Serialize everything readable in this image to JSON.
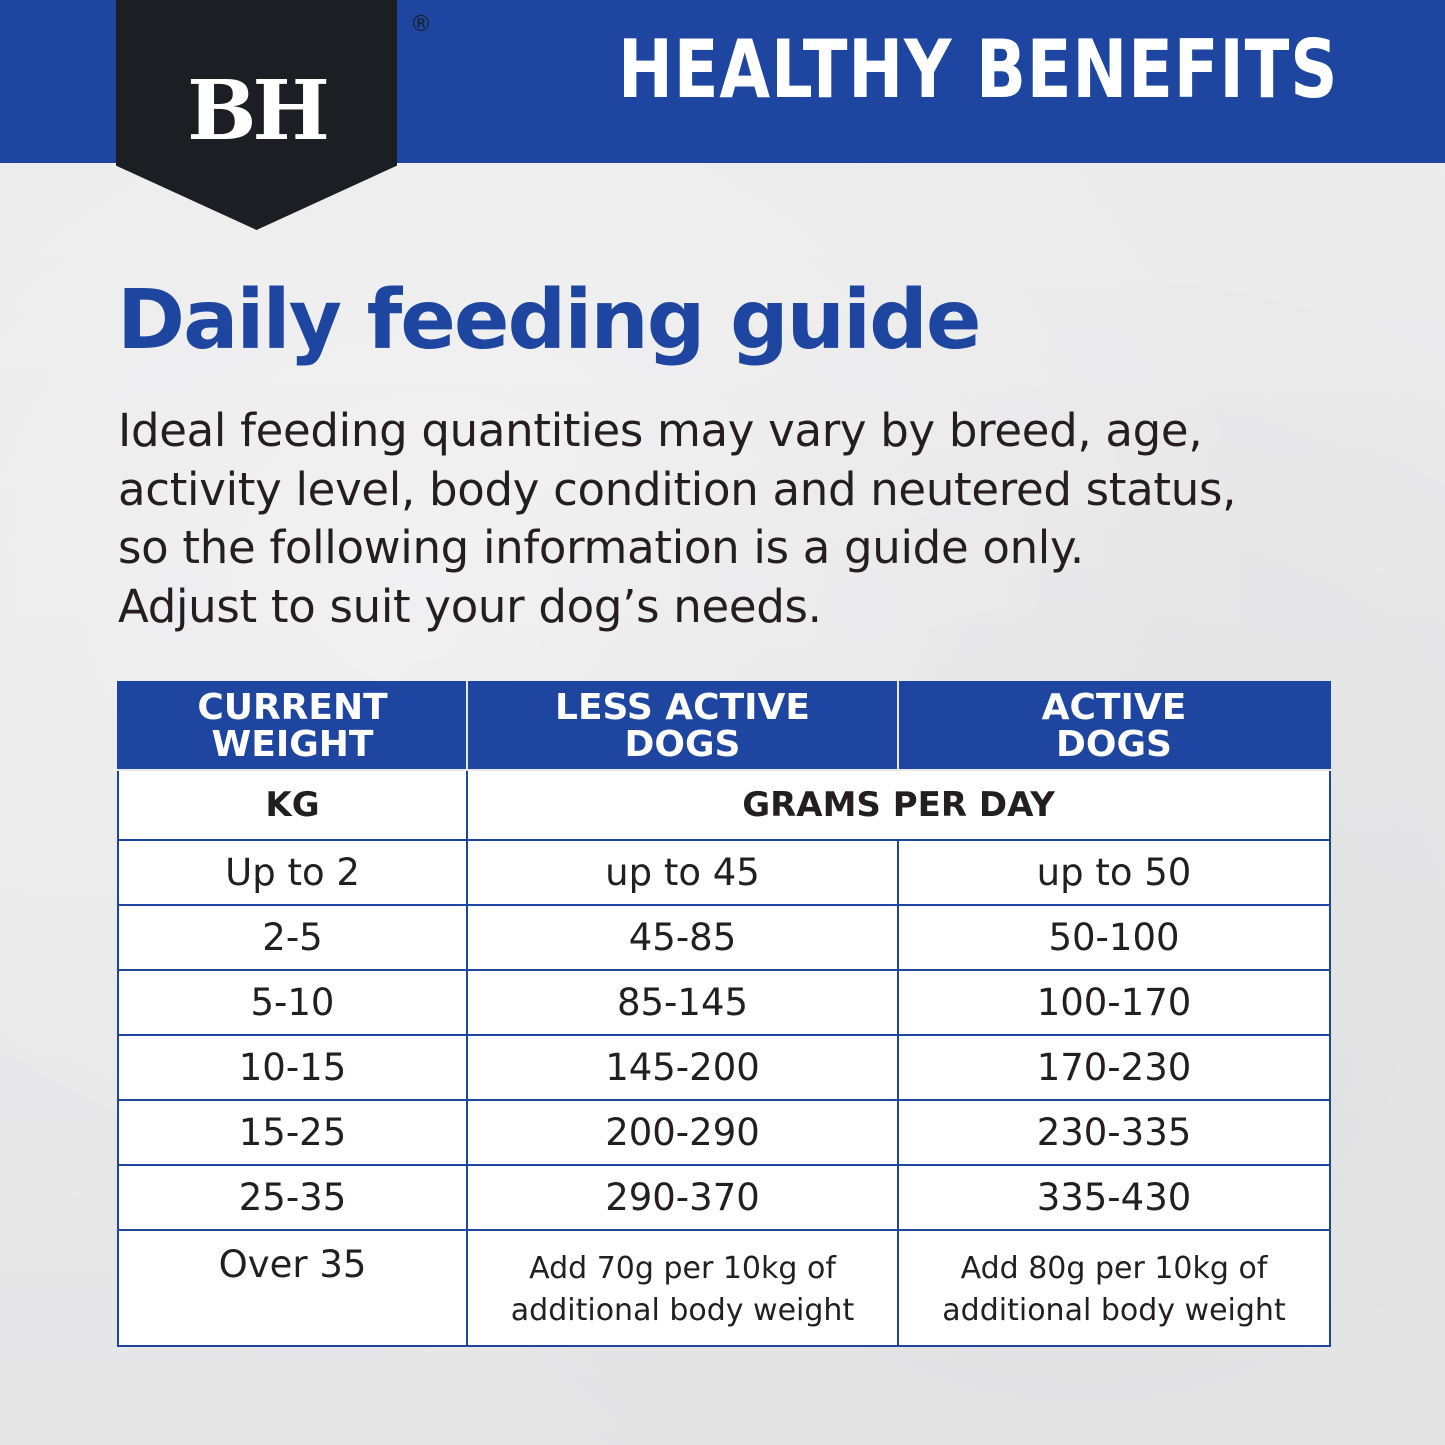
{
  "brand": {
    "logo_text": "BH",
    "registered_mark": "®",
    "name": "HEALTHY BENEFITS",
    "trademark": "™",
    "colors": {
      "primary_blue": "#1e46a0",
      "badge_black": "#1b1f24",
      "background": "#e9e9ea"
    }
  },
  "heading": "Daily feeding guide",
  "intro": "Ideal feeding quantities may vary by breed, age,\nactivity level, body condition and neutered status,\nso the following information is a guide only.\nAdjust to suit your dog’s needs.",
  "table": {
    "headers": [
      "CURRENT WEIGHT",
      "LESS ACTIVE DOGS",
      "ACTIVE DOGS"
    ],
    "units": {
      "weight": "KG",
      "amount": "GRAMS PER DAY"
    },
    "rows": [
      {
        "weight": "Up to 2",
        "less_active": "up to 45",
        "active": "up to 50"
      },
      {
        "weight": "2-5",
        "less_active": "45-85",
        "active": "50-100"
      },
      {
        "weight": "5-10",
        "less_active": "85-145",
        "active": "100-170"
      },
      {
        "weight": "10-15",
        "less_active": "145-200",
        "active": "170-230"
      },
      {
        "weight": "15-25",
        "less_active": "200-290",
        "active": "230-335"
      },
      {
        "weight": "25-35",
        "less_active": "290-370",
        "active": "335-430"
      },
      {
        "weight": "Over 35",
        "less_active": "Add 70g per 10kg of additional body weight",
        "active": "Add 80g per 10kg of additional body weight"
      }
    ]
  }
}
